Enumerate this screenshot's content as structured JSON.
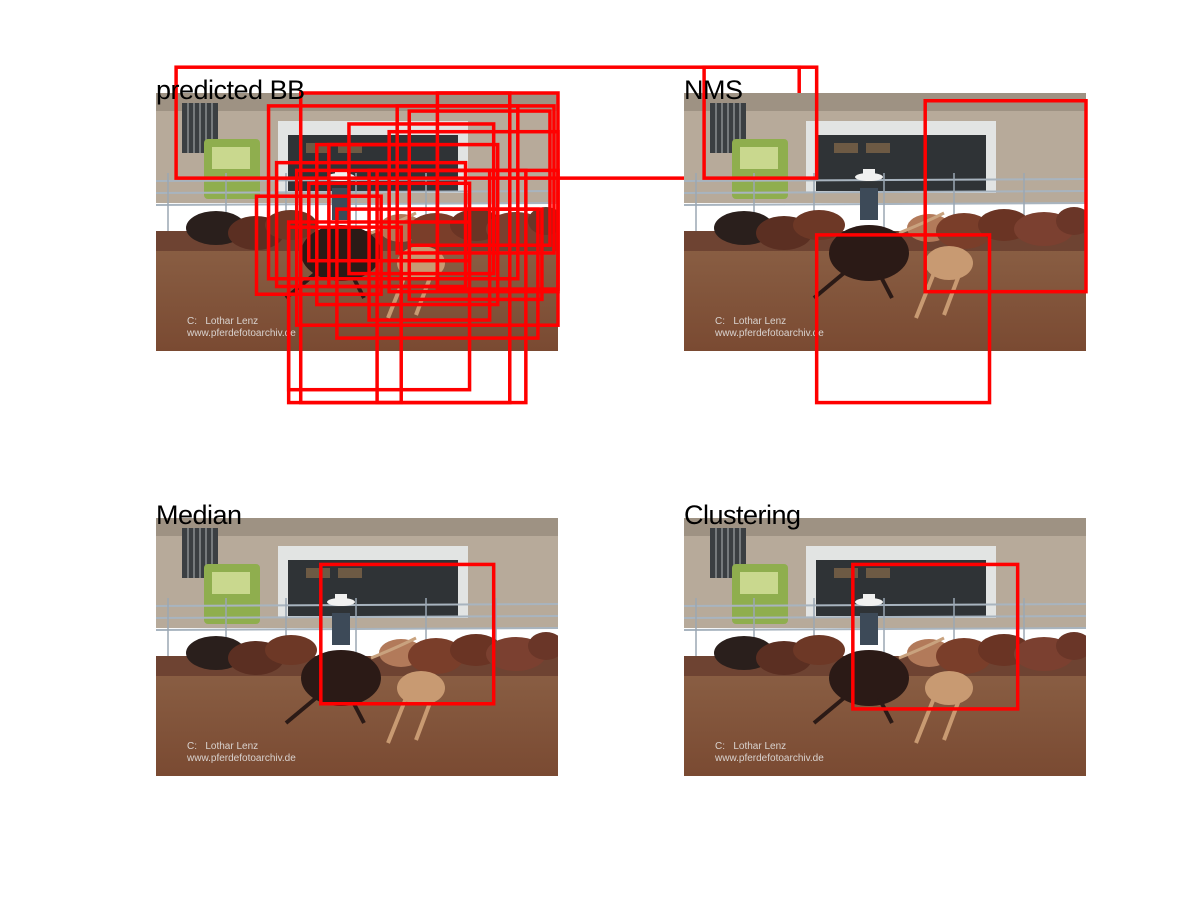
{
  "figure": {
    "box_color": "#ff0000",
    "panels": [
      {
        "title": "predicted BB",
        "watermark": {
          "line1": "C:   Lothar Lenz",
          "line2": "www.pferdefotoarchiv.de"
        },
        "boxes": [
          [
            0.05,
            -0.1,
            1.6,
            0.33
          ],
          [
            0.33,
            0.5,
            0.78,
            1.15
          ],
          [
            0.35,
            0.3,
            1.0,
            0.9
          ],
          [
            0.28,
            0.05,
            0.9,
            0.72
          ],
          [
            0.4,
            0.2,
            0.85,
            0.82
          ],
          [
            0.6,
            0.05,
            0.99,
            0.62
          ],
          [
            0.36,
            0.0,
            0.88,
            1.2
          ],
          [
            0.25,
            0.4,
            0.56,
            0.78
          ],
          [
            0.55,
            0.3,
            0.92,
            1.2
          ],
          [
            0.43,
            0.2,
            0.7,
            0.75
          ],
          [
            0.63,
            0.45,
            0.96,
            0.8
          ],
          [
            0.33,
            0.52,
            0.61,
            1.2
          ],
          [
            0.45,
            0.45,
            0.95,
            0.95
          ],
          [
            0.58,
            0.15,
            1.0,
            0.77
          ],
          [
            0.53,
            0.3,
            0.83,
            0.88
          ],
          [
            0.7,
            0.0,
            1.0,
            0.76
          ],
          [
            0.38,
            0.35,
            0.78,
            0.65
          ],
          [
            0.48,
            0.12,
            0.84,
            0.7
          ],
          [
            0.63,
            0.07,
            0.98,
            0.59
          ],
          [
            0.3,
            0.27,
            0.77,
            0.75
          ]
        ]
      },
      {
        "title": "NMS",
        "watermark": {
          "line1": "C:   Lothar Lenz",
          "line2": "www.pferdefotoarchiv.de"
        },
        "boxes": [
          [
            0.05,
            -0.1,
            0.33,
            0.33
          ],
          [
            0.33,
            0.55,
            0.76,
            1.2
          ],
          [
            0.6,
            0.03,
            1.0,
            0.77
          ]
        ]
      },
      {
        "title": "Median",
        "watermark": {
          "line1": "C:   Lothar Lenz",
          "line2": "www.pferdefotoarchiv.de"
        },
        "boxes": [
          [
            0.41,
            0.18,
            0.84,
            0.72
          ]
        ]
      },
      {
        "title": "Clustering",
        "watermark": {
          "line1": "C:   Lothar Lenz",
          "line2": "www.pferdefotoarchiv.de"
        },
        "boxes": [
          [
            0.42,
            0.18,
            0.83,
            0.74
          ]
        ]
      }
    ]
  }
}
